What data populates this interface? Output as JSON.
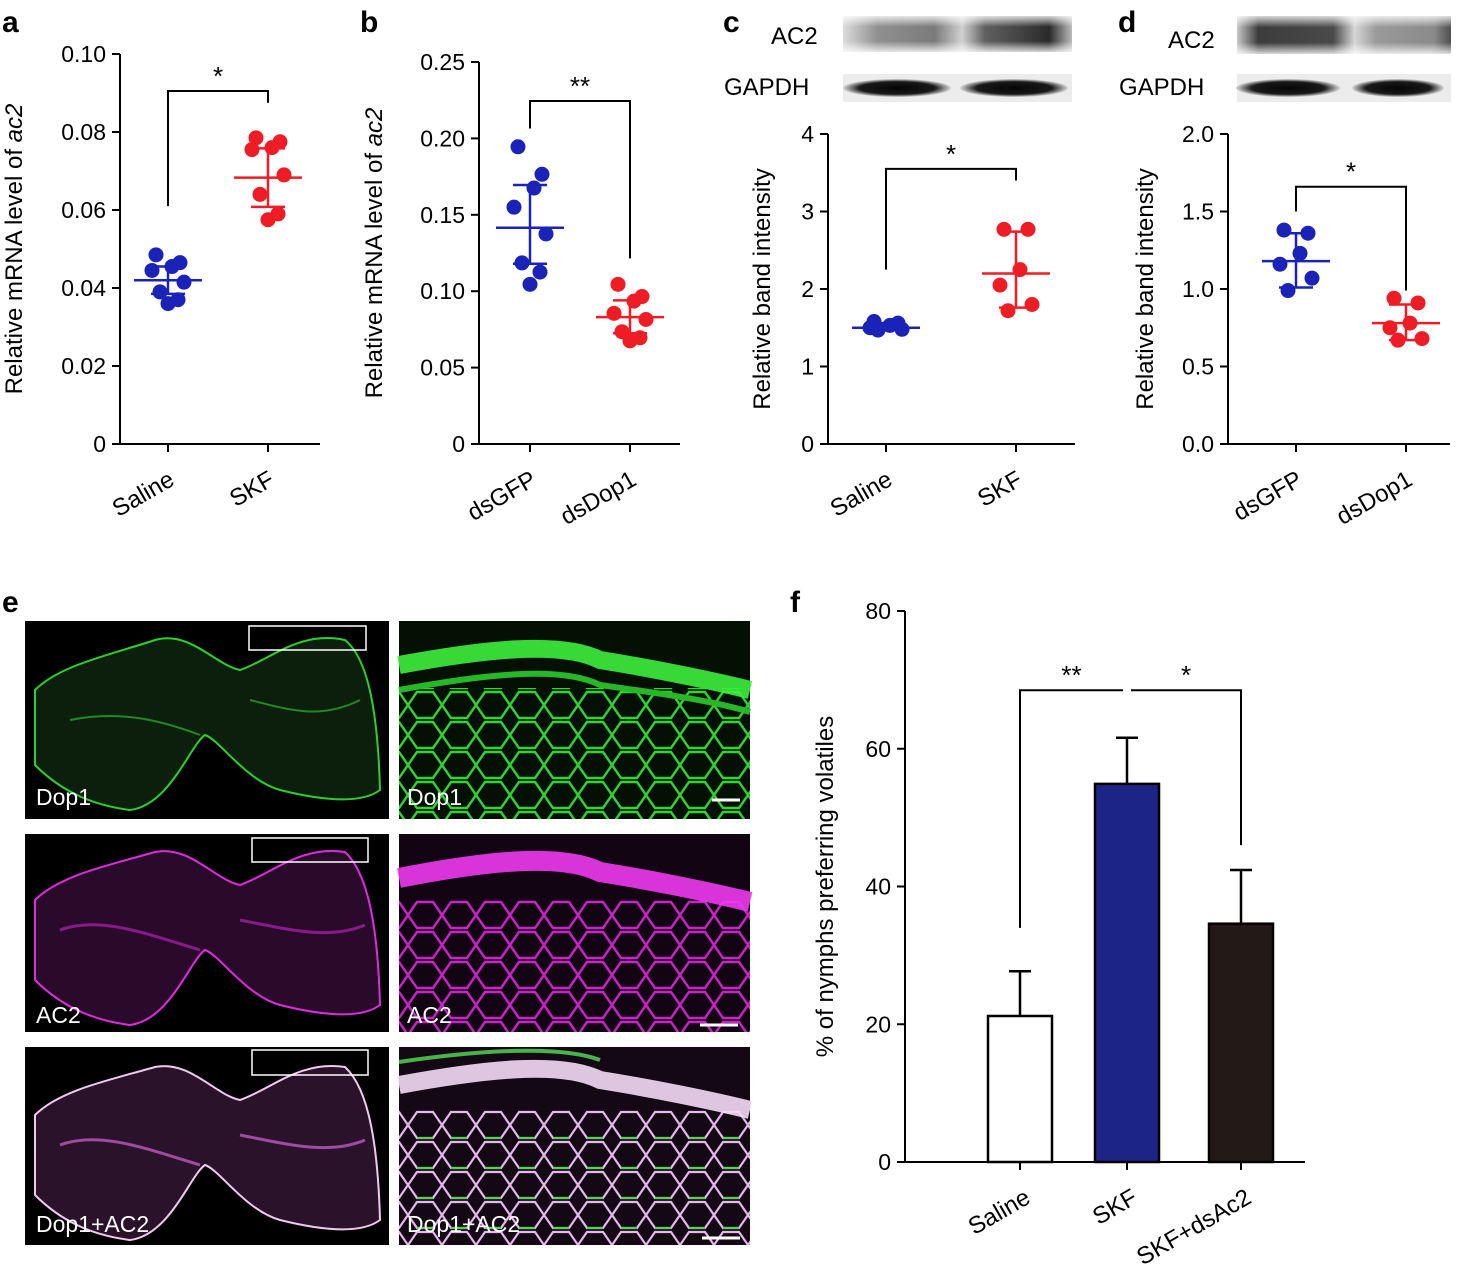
{
  "panel_labels": {
    "a": "a",
    "b": "b",
    "c": "c",
    "d": "d",
    "e": "e",
    "f": "f"
  },
  "colors": {
    "blue": "#1a22b8",
    "red": "#ee1c25",
    "green": "#33e633",
    "magenta": "#e02ae0",
    "bar_white": "#ffffff",
    "bar_navy": "#1c2587",
    "bar_dark": "#231a17"
  },
  "blots": {
    "c": {
      "ac2_label": "AC2",
      "gapdh_label": "GAPDH"
    },
    "d": {
      "ac2_label": "AC2",
      "gapdh_label": "GAPDH"
    }
  },
  "micrographs": {
    "row1_label": "Dop1",
    "row2_label": "AC2",
    "row3_label": "Dop1+AC2"
  },
  "chart_data": [
    {
      "id": "a",
      "type": "scatter",
      "ylabel_prefix": "Relative mRNA level of ",
      "ylabel_italic": "ac2",
      "ylim": [
        0,
        0.1
      ],
      "yticks": [
        "0",
        "0.02",
        "0.04",
        "0.06",
        "0.08",
        "0.10"
      ],
      "categories": [
        "Saline",
        "SKF"
      ],
      "series": [
        {
          "category": "Saline",
          "color": "blue",
          "mean": 0.042,
          "sd_low": 0.0385,
          "sd_high": 0.0455,
          "points": [
            0.0485,
            0.0465,
            0.0455,
            0.0445,
            0.0415,
            0.039,
            0.037,
            0.036
          ]
        },
        {
          "category": "SKF",
          "color": "red",
          "mean": 0.0683,
          "sd_low": 0.0608,
          "sd_high": 0.0758,
          "points": [
            0.0785,
            0.0775,
            0.076,
            0.0755,
            0.069,
            0.064,
            0.059,
            0.0575
          ]
        }
      ],
      "significance": {
        "label": "*",
        "from": 0,
        "to": 1,
        "y": 0.0905,
        "left_end": 0.061,
        "right_end": 0.0875
      }
    },
    {
      "id": "b",
      "type": "scatter",
      "ylabel_prefix": "Relative mRNA level of ",
      "ylabel_italic": "ac2",
      "ylim": [
        0,
        0.25
      ],
      "yticks": [
        "0",
        "0.05",
        "0.10",
        "0.15",
        "0.20",
        "0.25"
      ],
      "categories": [
        "dsGFP",
        "dsDop1"
      ],
      "series": [
        {
          "category": "dsGFP",
          "color": "blue",
          "mean": 0.1415,
          "sd_low": 0.118,
          "sd_high": 0.1695,
          "points": [
            0.1945,
            0.1765,
            0.1675,
            0.155,
            0.1375,
            0.1185,
            0.1125,
            0.1045
          ]
        },
        {
          "category": "dsDop1",
          "color": "red",
          "mean": 0.083,
          "sd_low": 0.0725,
          "sd_high": 0.094,
          "points": [
            0.1045,
            0.0965,
            0.0935,
            0.0855,
            0.0815,
            0.0735,
            0.0695,
            0.0675
          ]
        }
      ],
      "significance": {
        "label": "**",
        "from": 0,
        "to": 1,
        "y": 0.2245,
        "left_end": 0.2065,
        "right_end": 0.1215
      }
    },
    {
      "id": "c",
      "type": "scatter",
      "ylabel": "Relative band intensity",
      "ylim": [
        0,
        4
      ],
      "yticks": [
        "0",
        "1",
        "2",
        "3",
        "4"
      ],
      "categories": [
        "Saline",
        "SKF"
      ],
      "series": [
        {
          "category": "Saline",
          "color": "blue",
          "mean": 1.5,
          "sd_low": 1.47,
          "sd_high": 1.56,
          "points": [
            1.58,
            1.56,
            1.53,
            1.5,
            1.48,
            1.47
          ]
        },
        {
          "category": "SKF",
          "color": "red",
          "mean": 2.2,
          "sd_low": 1.76,
          "sd_high": 2.74,
          "points": [
            2.77,
            2.77,
            2.25,
            2.05,
            1.8,
            1.72
          ]
        }
      ],
      "significance": {
        "label": "*",
        "from": 0,
        "to": 1,
        "y": 3.55,
        "left_end": 2.25,
        "right_end": 3.4
      }
    },
    {
      "id": "d",
      "type": "scatter",
      "ylabel": "Relative band intensity",
      "ylim": [
        0,
        2
      ],
      "yticks": [
        "0.0",
        "0.5",
        "1.0",
        "1.5",
        "2.0"
      ],
      "categories": [
        "dsGFP",
        "dsDop1"
      ],
      "series": [
        {
          "category": "dsGFP",
          "color": "blue",
          "mean": 1.18,
          "sd_low": 1.01,
          "sd_high": 1.36,
          "points": [
            1.38,
            1.36,
            1.23,
            1.16,
            1.07,
            0.99
          ]
        },
        {
          "category": "dsDop1",
          "color": "red",
          "mean": 0.78,
          "sd_low": 0.67,
          "sd_high": 0.9,
          "points": [
            0.94,
            0.91,
            0.78,
            0.75,
            0.68,
            0.67
          ]
        }
      ],
      "significance": {
        "label": "*",
        "from": 0,
        "to": 1,
        "y": 1.66,
        "left_end": 1.5,
        "right_end": 0.99
      }
    },
    {
      "id": "f",
      "type": "bar",
      "ylabel": "% of nymphs preferring volatiles",
      "ylim": [
        0,
        80
      ],
      "yticks": [
        "0",
        "20",
        "40",
        "60",
        "80"
      ],
      "categories": [
        "Saline",
        "SKF",
        "SKF+dsAc2"
      ],
      "values": [
        21.2,
        54.9,
        34.6
      ],
      "errors": [
        6.5,
        6.7,
        7.8
      ],
      "bar_colors": [
        "bar_white",
        "bar_navy",
        "bar_dark"
      ],
      "significance": [
        {
          "label": "**",
          "from": 0,
          "to": 1,
          "y": 68.5,
          "left_end": 34,
          "right_end": 68.5
        },
        {
          "label": "*",
          "from": 1,
          "to": 2,
          "y": 68.5,
          "left_end": 68.5,
          "right_end": 46
        }
      ]
    }
  ]
}
